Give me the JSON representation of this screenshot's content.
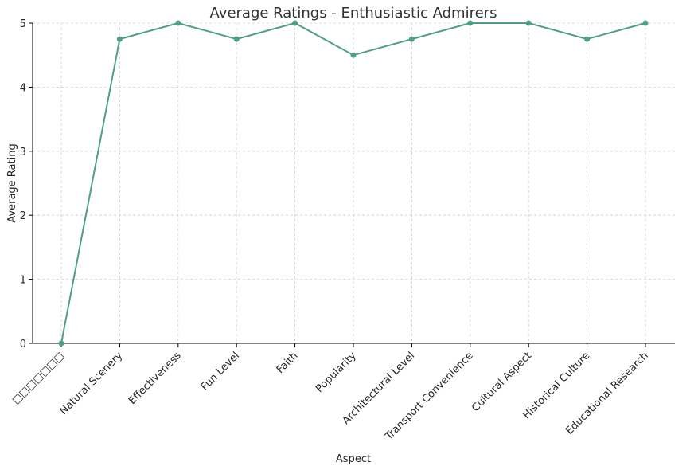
{
  "chart_data": {
    "type": "line",
    "title": "Average Ratings - Enthusiastic Admirers",
    "xlabel": "Aspect",
    "ylabel": "Average Rating",
    "categories": [
      "□□□□□□□",
      "Natural Scenery",
      "Effectiveness",
      "Fun Level",
      "Faith",
      "Popularity",
      "Architectural Level",
      "Transport Convenience",
      "Cultural Aspect",
      "Historical Culture",
      "Educational Research"
    ],
    "series": [
      {
        "values": [
          0,
          4.75,
          5.0,
          4.75,
          5.0,
          4.5,
          4.75,
          5.0,
          5.0,
          4.75,
          5.0
        ],
        "color": "#4e9f86",
        "marker": "circle"
      }
    ],
    "ylim": [
      0,
      5
    ],
    "yticks": [
      0,
      1,
      2,
      3,
      4,
      5
    ],
    "grid": true,
    "legend": "none"
  }
}
